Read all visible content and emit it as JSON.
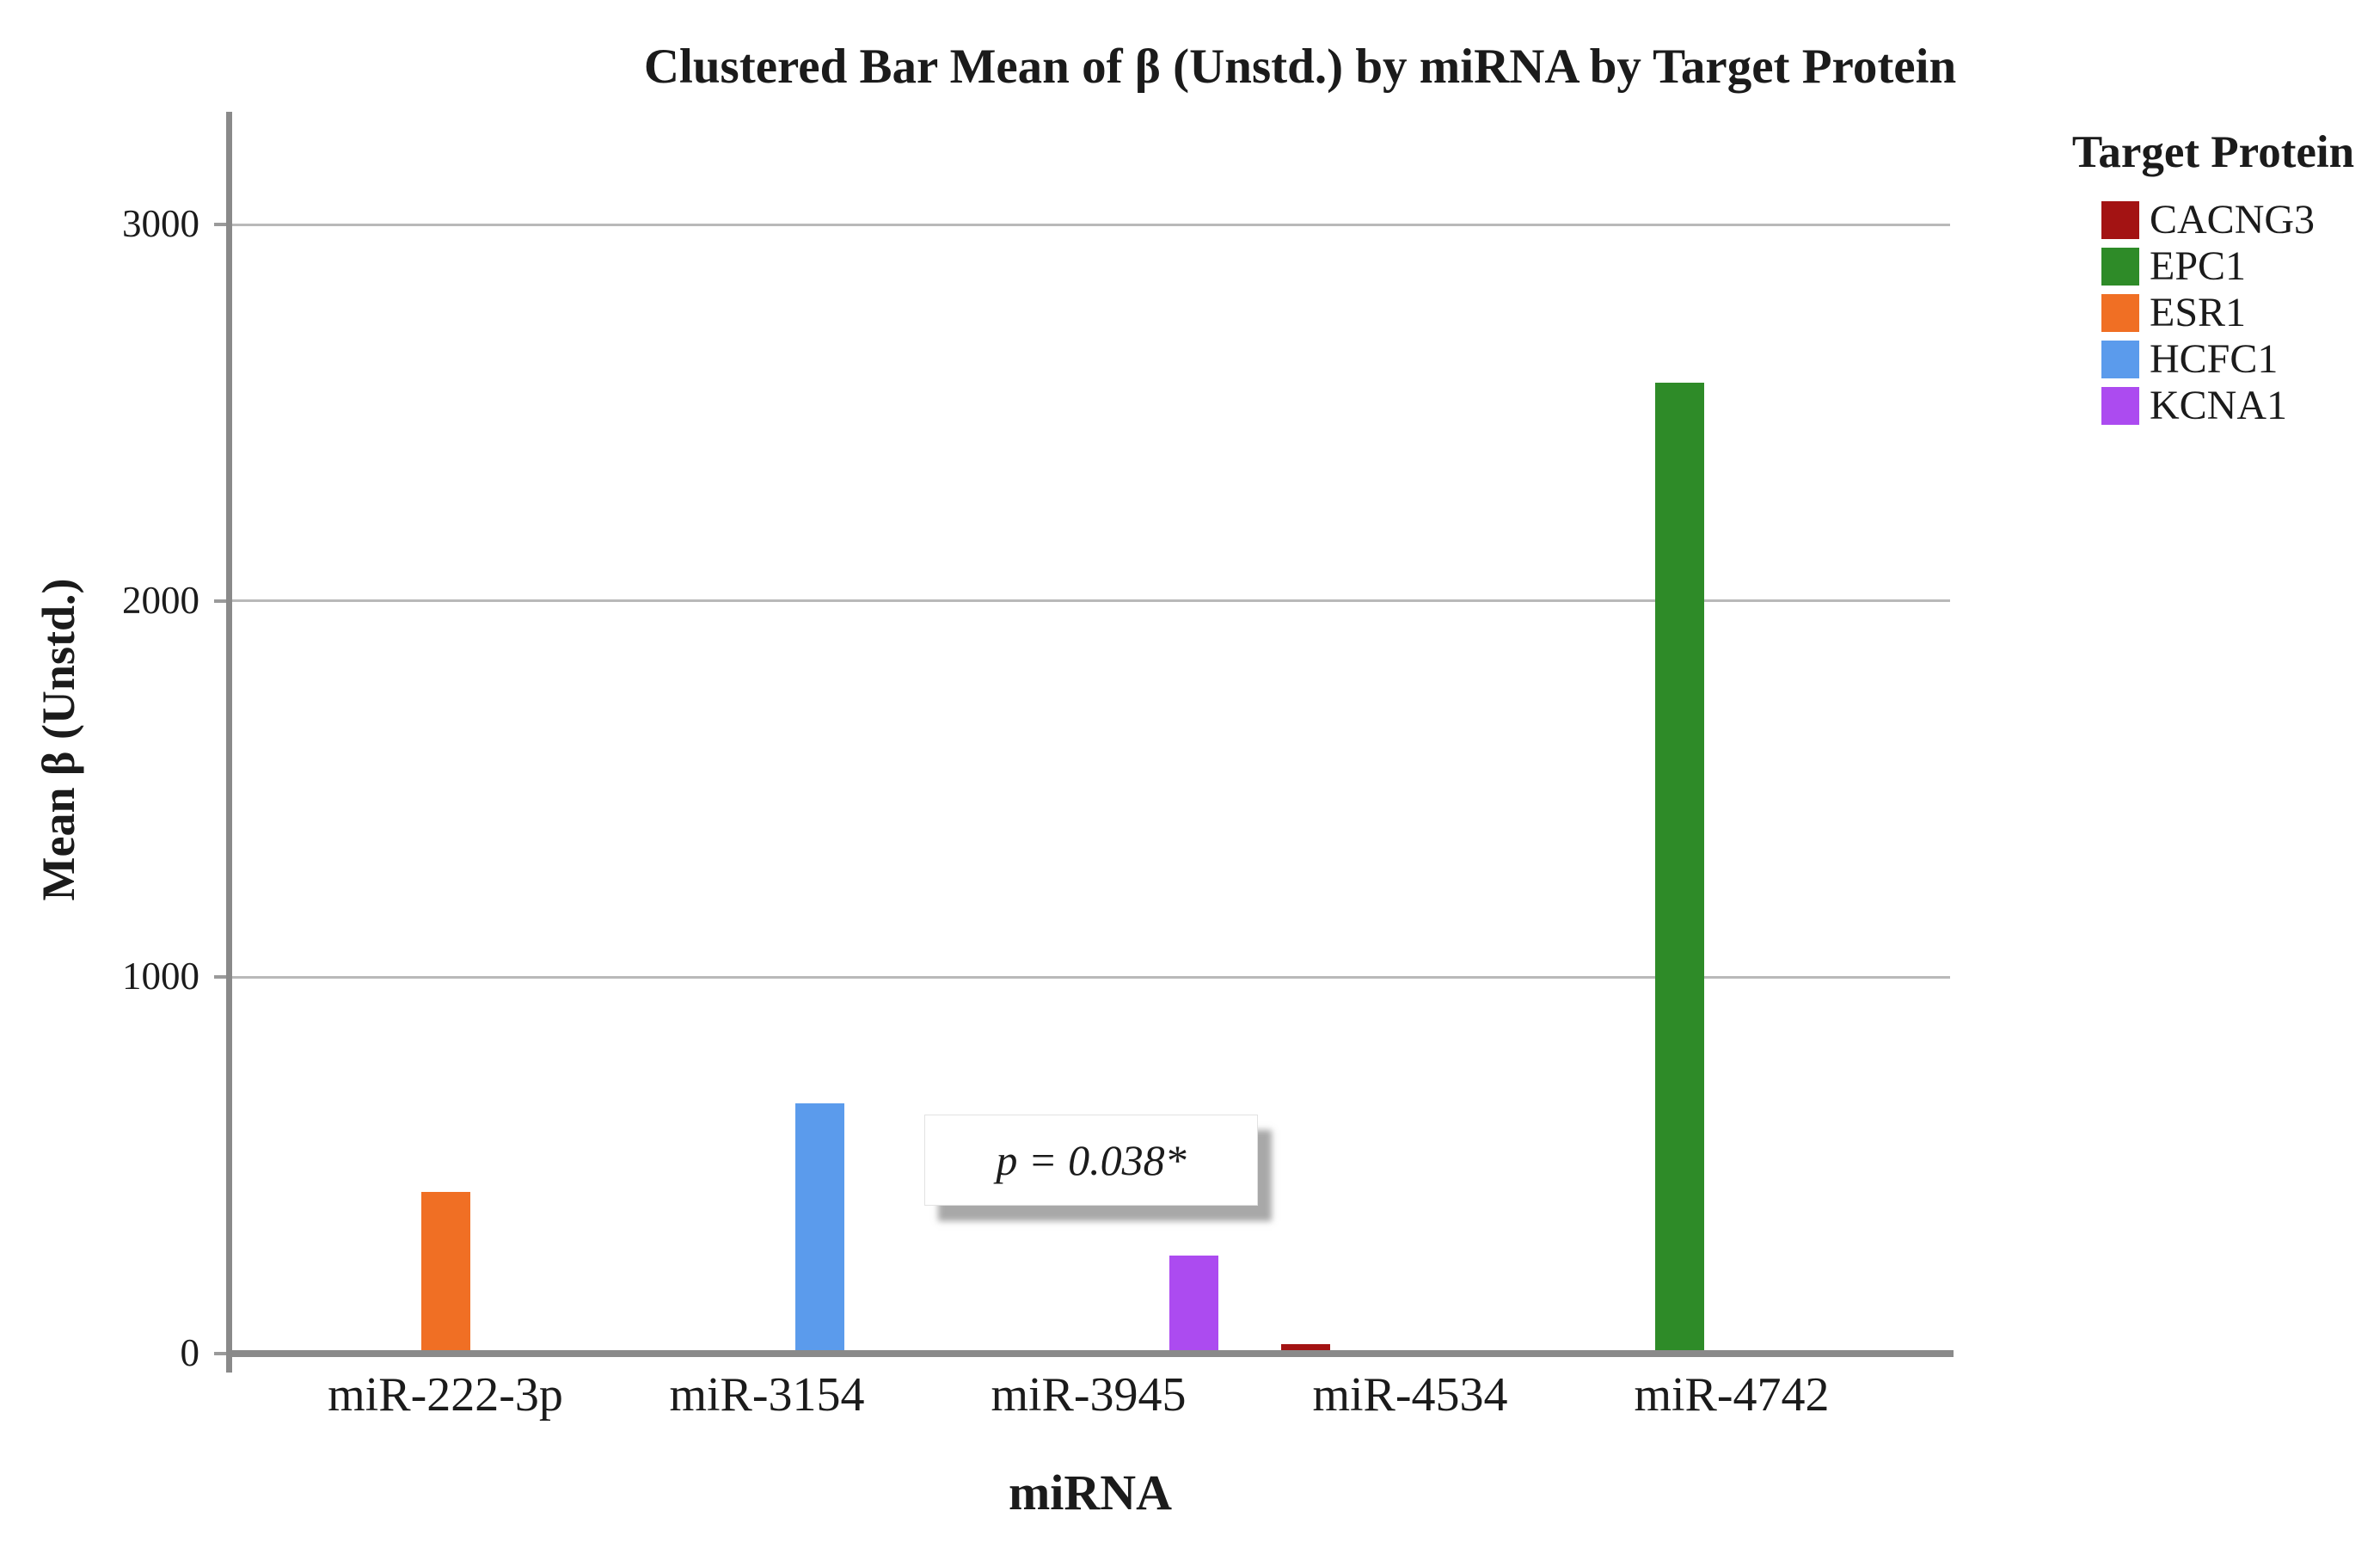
{
  "figure": {
    "title": "Clustered Bar Mean of β (Unstd.) by miRNA by Target Protein"
  },
  "chart_data": {
    "type": "bar",
    "title": "Clustered Bar Mean of β (Unstd.) by miRNA by Target Protein",
    "xlabel": "miRNA",
    "ylabel": "Mean β (Unstd.)",
    "categories": [
      "miR-222-3p",
      "miR-3154",
      "miR-3945",
      "miR-4534",
      "miR-4742"
    ],
    "series": [
      {
        "name": "CACNG3",
        "color": "#A31313",
        "values": [
          null,
          null,
          null,
          25,
          null
        ]
      },
      {
        "name": "EPC1",
        "color": "#2E8B28",
        "values": [
          null,
          null,
          null,
          null,
          2580
        ]
      },
      {
        "name": "ESR1",
        "color": "#F06F24",
        "values": [
          430,
          null,
          null,
          null,
          null
        ]
      },
      {
        "name": "HCFC1",
        "color": "#5B9BEC",
        "values": [
          null,
          665,
          null,
          null,
          null
        ]
      },
      {
        "name": "KCNA1",
        "color": "#AC4BF0",
        "values": [
          null,
          null,
          260,
          null,
          null
        ]
      }
    ],
    "y_ticks": [
      0,
      1000,
      2000,
      3000
    ],
    "ylim": [
      0,
      3300
    ],
    "grid": "horizontal-only",
    "gridline_color": "#b9b9b9",
    "axis_line_color": "#8a8a8a",
    "legend_position": "right",
    "legend_title": "Target Protein",
    "annotation": "p = 0.038*"
  },
  "legend": {
    "title": "Target Protein",
    "entries": [
      {
        "label": "CACNG3",
        "color": "#A31313"
      },
      {
        "label": "EPC1",
        "color": "#2E8B28"
      },
      {
        "label": "ESR1",
        "color": "#F06F24"
      },
      {
        "label": "HCFC1",
        "color": "#5B9BEC"
      },
      {
        "label": "KCNA1",
        "color": "#AC4BF0"
      }
    ]
  },
  "annotation": {
    "text": "p = 0.038*"
  }
}
